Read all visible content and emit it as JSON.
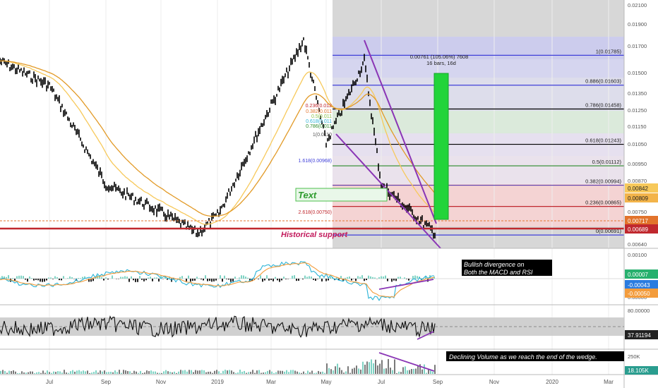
{
  "colors": {
    "background": "#ffffff",
    "grid": "#eeeeee",
    "candle": "#000000",
    "ema_fast": "#f7c95b",
    "ema_slow": "#e29a27",
    "wedge": "#8a35b5",
    "support": "#c0282e",
    "pane_divider": "#b8b8b8",
    "macd": "#2ab3d6",
    "signal": "#f39c3c",
    "rsi_band": "#c8c8c8",
    "measure_green": "#22d43a",
    "text_red": "#c2185b"
  },
  "axis": {
    "x_labels": [
      "Jul",
      "Sep",
      "Nov",
      "2019",
      "Mar",
      "May",
      "Jul",
      "Sep",
      "Nov",
      "2020",
      "Mar"
    ],
    "price_ticks": [
      "0.02100",
      "0.01900",
      "0.01700",
      "0.01500",
      "0.01350",
      "0.01250",
      "0.01150",
      "0.01050",
      "0.00950",
      "0.00870",
      "0.00750",
      "0.00640"
    ],
    "macd_ticks": [
      "0.00100",
      "0.00000"
    ],
    "rsi_ticks": [
      "80.00000"
    ],
    "volume_ticks": [
      "250K"
    ]
  },
  "chart_data": {
    "type": "line",
    "price": {
      "x": [
        "Jun 2018",
        "Jul 2018",
        "Sep 2018",
        "Nov 2018",
        "Dec 2018",
        "Jan 2019",
        "Mar 2019",
        "Apr 2019",
        "May 2019",
        "Jun 2019",
        "Jul 2019",
        "Aug 2019",
        "Sep 2019"
      ],
      "y": [
        0.0175,
        0.016,
        0.01,
        0.0083,
        0.007,
        0.0082,
        0.0148,
        0.0188,
        0.0125,
        0.0175,
        0.01,
        0.008,
        0.007
      ]
    },
    "fib_retracement": [
      {
        "label": "1(0.01785)",
        "value": 0.01785
      },
      {
        "label": "0.886(0.01603)",
        "value": 0.01603
      },
      {
        "label": "0.786(0.01458)",
        "value": 0.01458
      },
      {
        "label": "0.618(0.01243)",
        "value": 0.01243
      },
      {
        "label": "0.5(0.01112)",
        "value": 0.01112
      },
      {
        "label": "0.382(0.00994)",
        "value": 0.00994
      },
      {
        "label": "0.236(0.00865)",
        "value": 0.00865
      },
      {
        "label": "0(0.00691)",
        "value": 0.00691
      }
    ],
    "fib_small_labels": [
      "0.236(0.012",
      "0.382(0.011",
      "0.5(0.011",
      "0.618(0.011",
      "0.786(0.011",
      "1(0.0110",
      "1.618(0.00968)",
      "2.618(0.00750)"
    ],
    "price_badges": [
      "0.00842",
      "0.00809",
      "0.00717",
      "0.00689"
    ],
    "measure_label": "0.00761 (105.06%) 7608",
    "measure_sub": "16 bars, 16d",
    "annotations": {
      "text_box": "Text",
      "support": "Historical support",
      "divergence_line1": "Bullish divergence on",
      "divergence_line2": "Both the MACD and RSI",
      "volume_note": "Declining Volume as we reach the end of the wedge."
    },
    "macd_badges": [
      "0.00007",
      "-0.00043",
      "-0.00050"
    ],
    "rsi_badge": "37.91194",
    "volume_badge": "18.105K",
    "ylim_price": [
      0.0062,
      0.0211
    ]
  }
}
